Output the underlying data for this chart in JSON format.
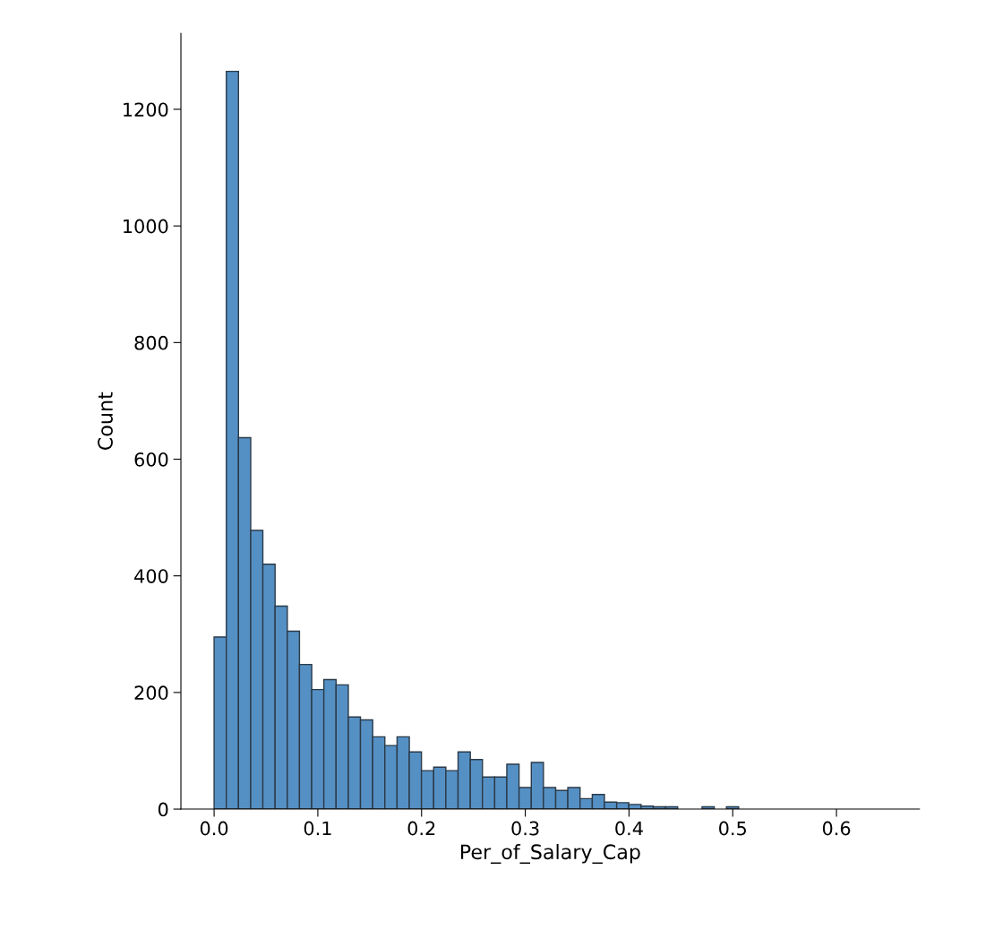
{
  "chart_data": {
    "type": "histogram",
    "xlabel": "Per_of_Salary_Cap",
    "ylabel": "Count",
    "color": "#5590c4",
    "bins": [
      0.0,
      0.0118,
      0.0235,
      0.0353,
      0.047,
      0.0588,
      0.0706,
      0.0823,
      0.0941,
      0.1058,
      0.1176,
      0.1294,
      0.1411,
      0.1529,
      0.1646,
      0.1764,
      0.1882,
      0.1999,
      0.2117,
      0.2234,
      0.2352,
      0.247,
      0.2587,
      0.2705,
      0.2822,
      0.294,
      0.3058,
      0.3175,
      0.3293,
      0.341,
      0.3528,
      0.3646,
      0.3763,
      0.3881,
      0.3998,
      0.4116,
      0.4234,
      0.4351,
      0.4469,
      0.4586,
      0.4704,
      0.4822,
      0.4939,
      0.5057,
      0.5174,
      0.5292,
      0.541,
      0.5527,
      0.5645,
      0.5762,
      0.588,
      0.5998,
      0.6115,
      0.6233,
      0.635
    ],
    "values": [
      295,
      1265,
      637,
      478,
      420,
      348,
      305,
      248,
      205,
      222,
      213,
      158,
      153,
      124,
      109,
      124,
      98,
      66,
      72,
      66,
      98,
      85,
      55,
      55,
      77,
      37,
      80,
      37,
      32,
      37,
      18,
      25,
      12,
      11,
      8,
      5,
      4,
      4,
      0,
      0,
      4,
      0,
      4,
      0,
      0,
      0,
      0,
      0,
      0,
      0,
      0,
      0,
      0,
      null
    ],
    "xlim": [
      -0.032,
      0.68
    ],
    "ylim": [
      0,
      1330
    ],
    "xticks": [
      {
        "value": 0,
        "label": "0.0"
      },
      0.1,
      0.2,
      0.3,
      0.4,
      0.5,
      0.6
    ],
    "yticks": [
      0,
      200,
      400,
      600,
      800,
      1000,
      1200
    ],
    "grid": false
  }
}
